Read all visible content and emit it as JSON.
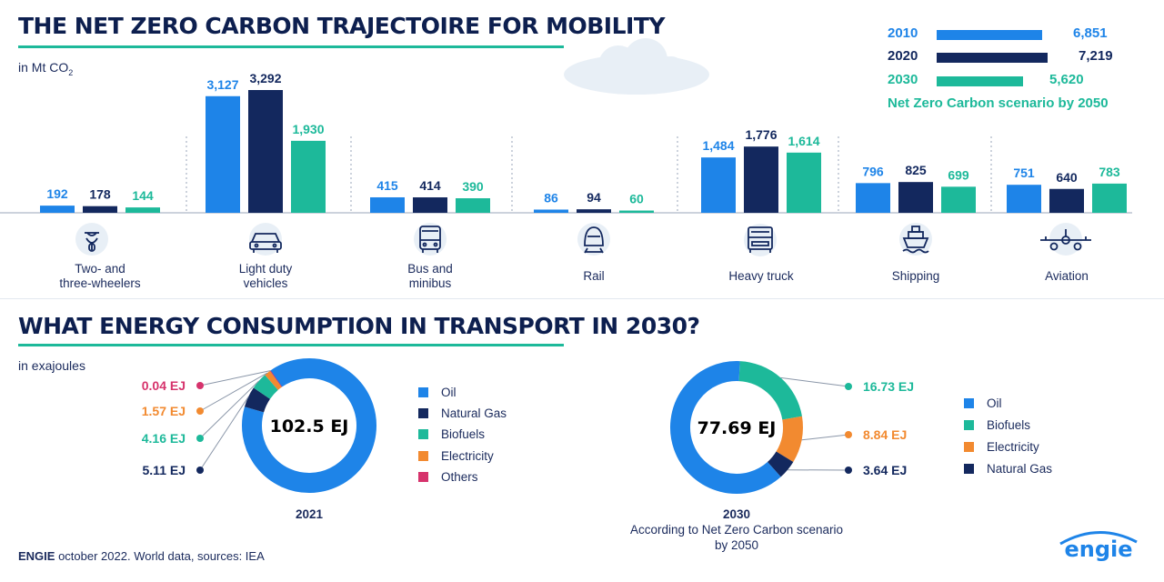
{
  "header": {
    "title": "THE NET ZERO CARBON TRAJECTOIRE FOR MOBILITY",
    "unit_prefix": "in Mt CO",
    "unit_sub": "2"
  },
  "colors": {
    "y2010": "#1e84e8",
    "y2020": "#13285e",
    "y2030": "#1db99a",
    "orange": "#f28a30",
    "magenta": "#d6336c",
    "cloud": "#e8eff6"
  },
  "legend_top": {
    "items": [
      {
        "year": "2010",
        "value": "6,851",
        "fill": 1.0
      },
      {
        "year": "2020",
        "value": "7,219",
        "fill": 1.05
      },
      {
        "year": "2030",
        "value": "5,620",
        "fill": 0.82
      }
    ],
    "note": "Net Zero Carbon scenario by 2050"
  },
  "chart_data": [
    {
      "type": "bar",
      "categories": [
        "Two- and three-wheelers",
        "Light duty vehicles",
        "Bus and minibus",
        "Rail",
        "Heavy truck",
        "Shipping",
        "Aviation"
      ],
      "series": [
        {
          "name": "2010",
          "values": [
            192,
            3127,
            415,
            86,
            1484,
            796,
            751
          ],
          "labels": [
            "192",
            "3,127",
            "415",
            "86",
            "1,484",
            "796",
            "751"
          ]
        },
        {
          "name": "2020",
          "values": [
            178,
            3292,
            414,
            94,
            1776,
            825,
            640
          ],
          "labels": [
            "178",
            "3,292",
            "414",
            "94",
            "1,776",
            "825",
            "640"
          ]
        },
        {
          "name": "2030",
          "values": [
            144,
            1930,
            390,
            60,
            1614,
            699,
            783
          ],
          "labels": [
            "144",
            "1,930",
            "390",
            "60",
            "1,614",
            "699",
            "783"
          ]
        }
      ],
      "ylim": [
        0,
        3292
      ]
    },
    {
      "type": "pie",
      "title": "2021",
      "center_label": "102.5 EJ",
      "total": 102.5,
      "slices": [
        {
          "name": "Oil",
          "value": 91.62,
          "label": ""
        },
        {
          "name": "Natural Gas",
          "value": 5.11,
          "label": "5.11 EJ"
        },
        {
          "name": "Biofuels",
          "value": 4.16,
          "label": "4.16 EJ"
        },
        {
          "name": "Electricity",
          "value": 1.57,
          "label": "1.57 EJ"
        },
        {
          "name": "Others",
          "value": 0.04,
          "label": "0.04 EJ"
        }
      ]
    },
    {
      "type": "pie",
      "title": "2030",
      "subtitle": "According to Net Zero Carbon scenario by 2050",
      "center_label": "77.69 EJ",
      "total": 77.69,
      "slices": [
        {
          "name": "Oil",
          "value": 48.48,
          "label": ""
        },
        {
          "name": "Biofuels",
          "value": 16.73,
          "label": "16.73 EJ"
        },
        {
          "name": "Electricity",
          "value": 8.84,
          "label": "8.84 EJ"
        },
        {
          "name": "Natural Gas",
          "value": 3.64,
          "label": "3.64 EJ"
        }
      ]
    }
  ],
  "categories_display": [
    {
      "line1": "Two- and",
      "line2": "three-wheelers",
      "icon": "scooter-icon"
    },
    {
      "line1": "Light duty",
      "line2": "vehicles",
      "icon": "car-icon"
    },
    {
      "line1": "Bus and",
      "line2": "minibus",
      "icon": "bus-icon"
    },
    {
      "line1": "Rail",
      "line2": "",
      "icon": "train-icon"
    },
    {
      "line1": "Heavy truck",
      "line2": "",
      "icon": "truck-icon"
    },
    {
      "line1": "Shipping",
      "line2": "",
      "icon": "ship-icon"
    },
    {
      "line1": "Aviation",
      "line2": "",
      "icon": "plane-icon"
    }
  ],
  "section2": {
    "title": "WHAT ENERGY CONSUMPTION IN TRANSPORT IN 2030?",
    "unit": "in exajoules"
  },
  "donut1": {
    "caption": "2021",
    "legend": [
      "Oil",
      "Natural Gas",
      "Biofuels",
      "Electricity",
      "Others"
    ]
  },
  "donut2": {
    "caption_line1": "2030",
    "caption_line2": "According to Net Zero Carbon scenario",
    "caption_line3": "by 2050",
    "legend": [
      "Oil",
      "Biofuels",
      "Electricity",
      "Natural Gas"
    ]
  },
  "footer": {
    "brand": "ENGIE",
    "text": " october 2022. World data, sources: IEA",
    "logo": "engie"
  }
}
